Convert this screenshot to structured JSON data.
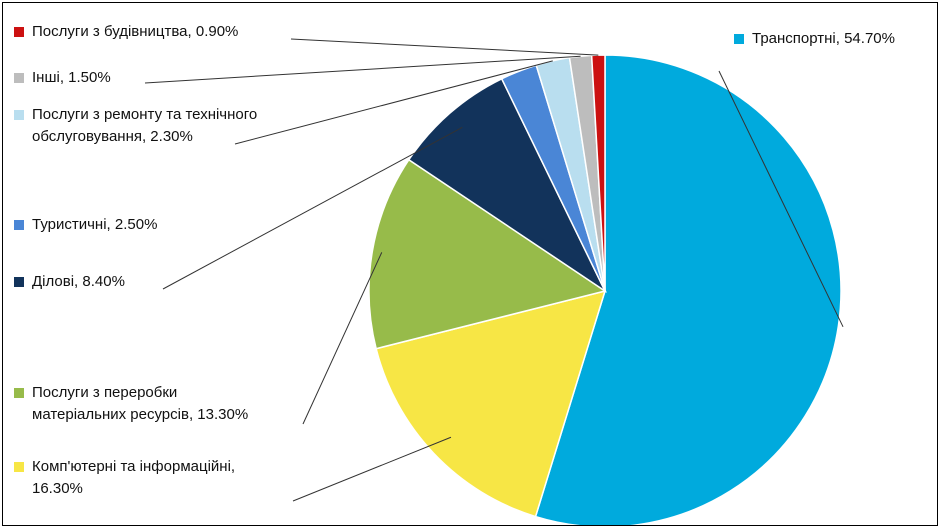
{
  "chart_data": {
    "type": "pie",
    "start_angle_deg": 0,
    "direction": "clockwise",
    "slices": [
      {
        "label": "Транспортні",
        "value": 54.7,
        "display": "Транспортні, 54.70%",
        "color": "#00AADD"
      },
      {
        "label": "Комп'ютерні та інформаційні",
        "value": 16.3,
        "display_lines": [
          "Комп'ютерні та інформаційні,",
          "16.30%"
        ],
        "color": "#F7E645"
      },
      {
        "label": "Послуги з переробки матеріальних ресурсів",
        "value": 13.3,
        "display_lines": [
          "Послуги з переробки",
          "матеріальних ресурсів, 13.30%"
        ],
        "color": "#97BB4A"
      },
      {
        "label": "Ділові",
        "value": 8.4,
        "display": "Ділові, 8.40%",
        "color": "#12335B"
      },
      {
        "label": "Туристичні",
        "value": 2.5,
        "display": "Туристичні, 2.50%",
        "color": "#4A86D6"
      },
      {
        "label": "Послуги з ремонту та технічного обслуговування",
        "value": 2.3,
        "display_lines": [
          "Послуги з ремонту та технічного",
          "обслуговування, 2.30%"
        ],
        "color": "#B9DEEF"
      },
      {
        "label": "Інші",
        "value": 1.5,
        "display": "Інші, 1.50%",
        "color": "#BDBDBD"
      },
      {
        "label": "Послуги з будівництва",
        "value": 0.9,
        "display": "Послуги з будівництва, 0.90%",
        "color": "#CC1111"
      }
    ]
  }
}
